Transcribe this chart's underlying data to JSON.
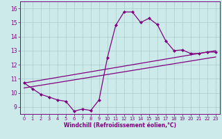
{
  "xlabel": "Windchill (Refroidissement éolien,°C)",
  "bg_color": "#cdeaea",
  "line_color": "#800080",
  "grid_color": "#aacccc",
  "x_data": [
    0,
    1,
    2,
    3,
    4,
    5,
    6,
    7,
    8,
    9,
    10,
    11,
    12,
    13,
    14,
    15,
    16,
    17,
    18,
    19,
    20,
    21,
    22,
    23
  ],
  "main_line": [
    10.7,
    10.3,
    9.9,
    9.7,
    9.5,
    9.4,
    8.7,
    8.85,
    8.75,
    9.5,
    12.5,
    14.8,
    15.75,
    15.75,
    15.0,
    15.3,
    14.85,
    13.7,
    13.0,
    13.05,
    12.8,
    12.8,
    12.9,
    12.9
  ],
  "upper_line_start": 10.7,
  "upper_line_end": 13.0,
  "lower_line_start": 10.35,
  "lower_line_end": 12.55,
  "xlim": [
    -0.5,
    23.5
  ],
  "ylim": [
    8.5,
    16.5
  ],
  "yticks": [
    9,
    10,
    11,
    12,
    13,
    14,
    15,
    16
  ],
  "xticks": [
    0,
    1,
    2,
    3,
    4,
    5,
    6,
    7,
    8,
    9,
    10,
    11,
    12,
    13,
    14,
    15,
    16,
    17,
    18,
    19,
    20,
    21,
    22,
    23
  ]
}
